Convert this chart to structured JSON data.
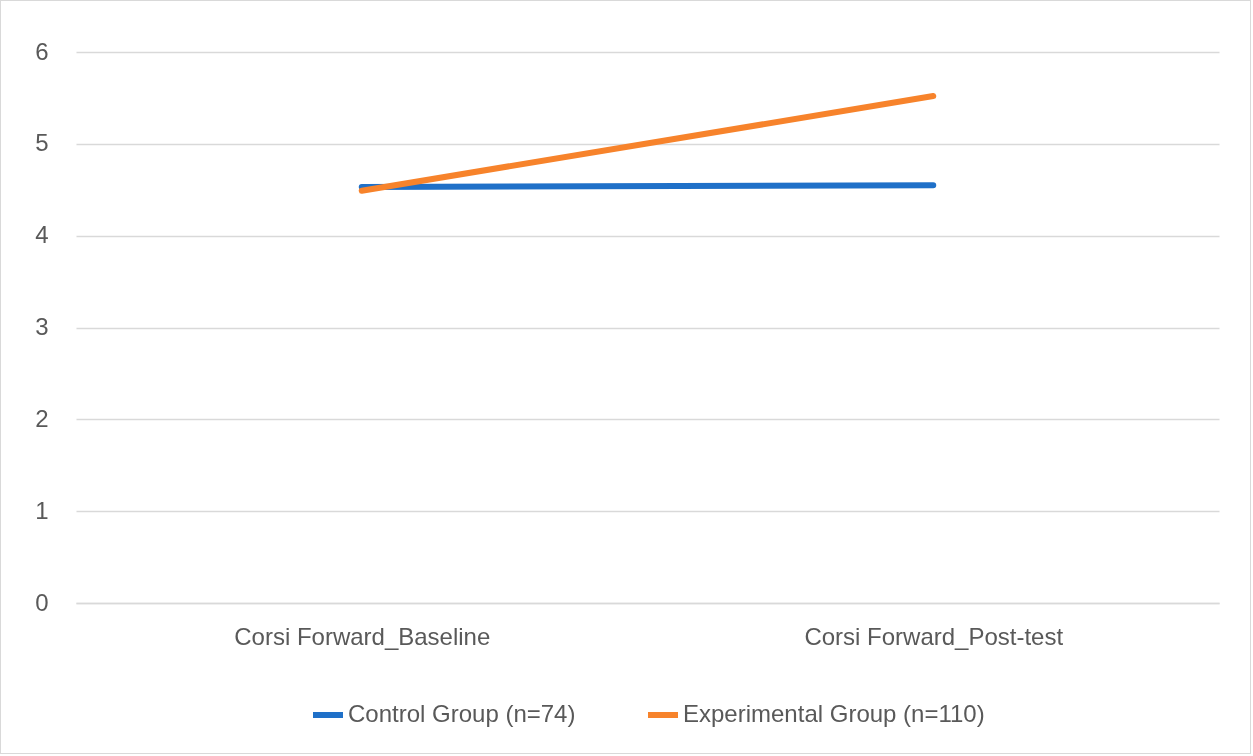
{
  "chart_data": {
    "type": "line",
    "categories": [
      "Corsi Forward_Baseline",
      "Corsi Forward_Post-test"
    ],
    "series": [
      {
        "name": "Control Group (n=74)",
        "color": "#1f70c8",
        "values": [
          4.53,
          4.55
        ]
      },
      {
        "name": "Experimental Group (n=110)",
        "color": "#f7832b",
        "values": [
          4.49,
          5.52
        ]
      }
    ],
    "ylim": [
      0,
      6
    ],
    "yticks": [
      0,
      1,
      2,
      3,
      4,
      5,
      6
    ],
    "grid": "y",
    "legend": "bottom",
    "marker": "none",
    "line_style": "solid"
  }
}
